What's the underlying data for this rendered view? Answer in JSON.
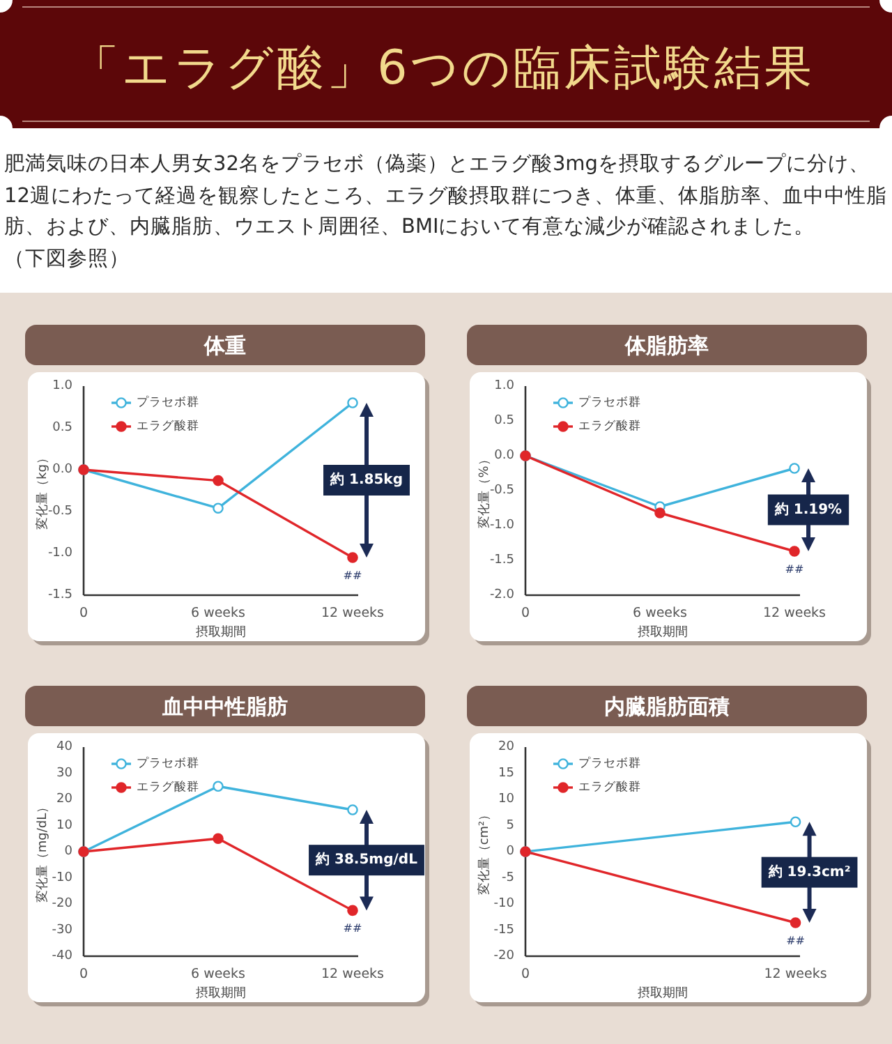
{
  "chart_data": [
    {
      "type": "other",
      "title": "「エラグ酸」6つの臨床試験結果",
      "annotations": [
        "肥満気味の日本人男女32名をプラセボ（偽薬）とエラグ酸3mgを摂取するグループに分け、12週にわたって経過を観察したところ、エラグ酸摂取群につき、体重、体脂肪率、血中中性脂肪、および、内臓脂肪、ウエスト周囲径、BMIにおいて有意な減少が確認されました。",
        "（下図参照）"
      ]
    },
    {
      "type": "line",
      "title": "体重",
      "xlabel": "摂取期間",
      "ylabel": "変化量（kg）",
      "categories": [
        "0",
        "6 weeks",
        "12 weeks"
      ],
      "series": [
        {
          "name": "プラセボ群",
          "color": "#3fb3dc",
          "values": [
            0,
            -0.46,
            0.8
          ]
        },
        {
          "name": "エラグ酸群",
          "color": "#e0262a",
          "values": [
            0,
            -0.13,
            -1.05
          ]
        }
      ],
      "ylim": [
        -1.5,
        1
      ],
      "yticks": [
        {
          "value": -1.5,
          "label": "-1.5"
        },
        {
          "value": -1,
          "label": "-1.0"
        },
        {
          "value": -0.5,
          "label": "-0.5"
        },
        {
          "value": 0,
          "label": "0.0"
        },
        {
          "value": 0.5,
          "label": "0.5"
        },
        {
          "value": 1,
          "label": "1.0"
        }
      ],
      "marker": "circle",
      "legend": "top left",
      "annotations": [
        "約 1.85kg",
        {
          "text": "##",
          "x": "12 weeks",
          "y": -1.05
        }
      ]
    },
    {
      "type": "line",
      "title": "体脂肪率",
      "xlabel": "摂取期間",
      "ylabel": "変化量（%）",
      "categories": [
        "0",
        "6 weeks",
        "12 weeks"
      ],
      "series": [
        {
          "name": "プラセボ群",
          "color": "#3fb3dc",
          "values": [
            0,
            -0.73,
            -0.18
          ]
        },
        {
          "name": "エラグ酸群",
          "color": "#e0262a",
          "values": [
            0,
            -0.82,
            -1.37
          ]
        }
      ],
      "ylim": [
        -2,
        1
      ],
      "yticks": [
        {
          "value": -2,
          "label": "-2.0"
        },
        {
          "value": -1.5,
          "label": "-1.5"
        },
        {
          "value": -1,
          "label": "-1.0"
        },
        {
          "value": -0.5,
          "label": "-0.5"
        },
        {
          "value": 0,
          "label": "0.0"
        },
        {
          "value": 0.5,
          "label": "0.5"
        },
        {
          "value": 1,
          "label": "1.0"
        }
      ],
      "marker": "circle",
      "legend": "top left",
      "annotations": [
        "約 1.19%",
        {
          "text": "##",
          "x": "12 weeks",
          "y": -1.37
        }
      ]
    },
    {
      "type": "line",
      "title": "血中中性脂肪",
      "xlabel": "摂取期間",
      "ylabel": "変化量（mg/dL）",
      "categories": [
        "0",
        "6 weeks",
        "12 weeks"
      ],
      "series": [
        {
          "name": "プラセボ群",
          "color": "#3fb3dc",
          "values": [
            0,
            25,
            16
          ]
        },
        {
          "name": "エラグ酸群",
          "color": "#e0262a",
          "values": [
            0,
            5,
            -22.5
          ]
        }
      ],
      "ylim": [
        -40,
        40
      ],
      "yticks": [
        -40,
        -30,
        -20,
        -10,
        0,
        10,
        20,
        30,
        40
      ],
      "marker": "circle",
      "legend": "top left",
      "annotations": [
        "約 38.5mg/dL",
        {
          "text": "##",
          "x": "12 weeks",
          "y": -22.5
        }
      ]
    },
    {
      "type": "line",
      "title": "内臓脂肪面積",
      "xlabel": "摂取期間",
      "ylabel": "変化量（cm²）",
      "x": [
        0,
        12
      ],
      "xlim": [
        0,
        12.2
      ],
      "xticks": [
        0,
        {
          "value": 12,
          "label": "12 weeks"
        }
      ],
      "series": [
        {
          "name": "プラセボ群",
          "color": "#3fb3dc",
          "values": [
            0,
            5.7
          ]
        },
        {
          "name": "エラグ酸群",
          "color": "#e0262a",
          "values": [
            0,
            -13.6
          ]
        }
      ],
      "ylim": [
        -20,
        20
      ],
      "yticks": [
        -20,
        -15,
        -10,
        -5,
        0,
        5,
        10,
        15,
        20
      ],
      "marker": "circle",
      "legend": "top left",
      "annotations": [
        "約 19.3cm²",
        {
          "text": "##",
          "x": 12,
          "y": -13.6
        }
      ]
    }
  ]
}
